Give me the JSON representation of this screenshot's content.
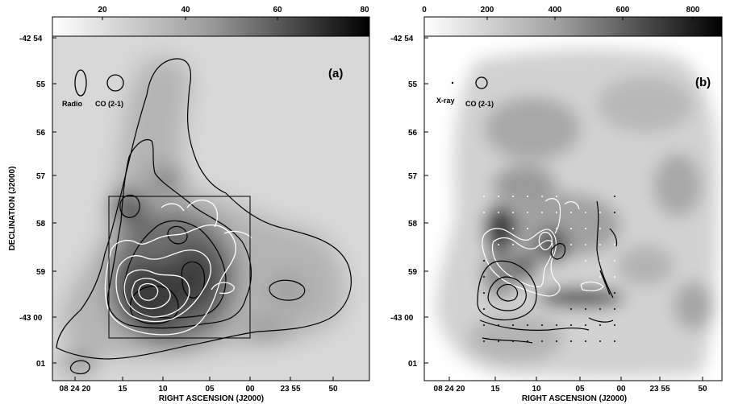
{
  "panels": [
    {
      "id": "a",
      "label": "(a)",
      "colorbar_ticks": [
        "20",
        "40",
        "60",
        "80"
      ],
      "beam_labels": [
        "Radio",
        "CO (2-1)"
      ],
      "ylabel": "DECLINATION (J2000)",
      "xlabel": "RIGHT ASCENSION (J2000)"
    },
    {
      "id": "b",
      "label": "(b)",
      "colorbar_ticks": [
        "0",
        "200",
        "400",
        "600",
        "800"
      ],
      "beam_labels": [
        "X-ray",
        "CO (2-1)"
      ],
      "xlabel": "RIGHT ASCENSION (J2000)"
    }
  ],
  "dec_ticks": [
    "-42 54",
    "55",
    "56",
    "57",
    "58",
    "59",
    "-43 00",
    "01"
  ],
  "ra_ticks": [
    "08 24 20",
    "15",
    "10",
    "05",
    "00",
    "23 55",
    "50"
  ]
}
